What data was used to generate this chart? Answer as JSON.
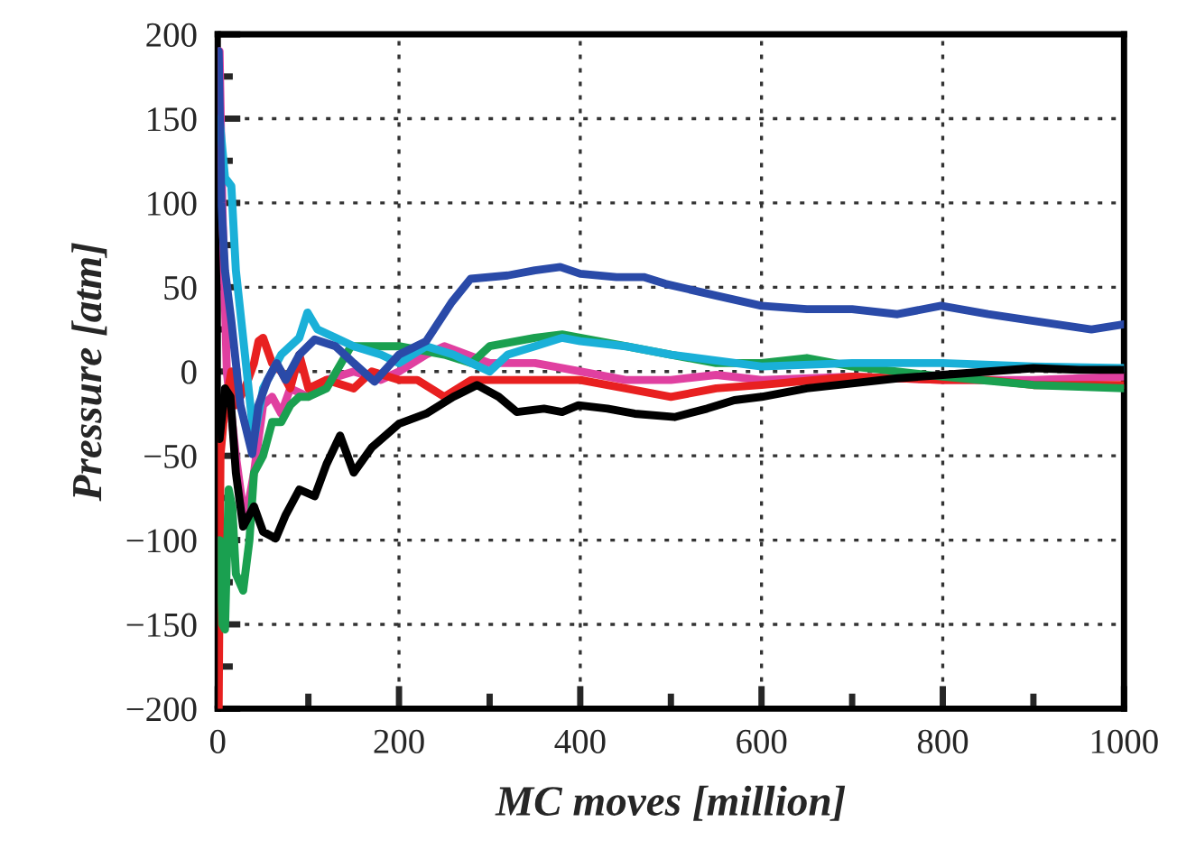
{
  "chart_data": {
    "type": "line",
    "xlabel": "MC moves [million]",
    "ylabel": "Pressure [atm]",
    "xlim": [
      0,
      1000
    ],
    "ylim": [
      -200,
      200
    ],
    "xticks": [
      0,
      {
        "value": 100,
        "label": null
      },
      200,
      {
        "value": 300,
        "label": null
      },
      400,
      {
        "value": 500,
        "label": null
      },
      600,
      {
        "value": 700,
        "label": null
      },
      800,
      {
        "value": 900,
        "label": null
      },
      1000
    ],
    "yticks": [
      {
        "value": -200,
        "label": "−200"
      },
      {
        "value": -175,
        "label": null
      },
      {
        "value": -150,
        "label": "−150"
      },
      {
        "value": -125,
        "label": null
      },
      {
        "value": -100,
        "label": "−100"
      },
      {
        "value": -75,
        "label": null
      },
      {
        "value": -50,
        "label": "−50"
      },
      {
        "value": -25,
        "label": null
      },
      0,
      {
        "value": 25,
        "label": null
      },
      50,
      {
        "value": 75,
        "label": null
      },
      100,
      {
        "value": 125,
        "label": null
      },
      150,
      {
        "value": 175,
        "label": null
      },
      200
    ],
    "grid": true,
    "marker": "none",
    "line_style": "solid",
    "series": [
      {
        "color": "#e040a0",
        "x": [
          2,
          5,
          10,
          20,
          30,
          40,
          50,
          60,
          70,
          80,
          100,
          120,
          150,
          180,
          200,
          230,
          250,
          300,
          350,
          400,
          450,
          500,
          550,
          600,
          700,
          800,
          900,
          1000
        ],
        "values": [
          190,
          100,
          0,
          -50,
          -90,
          -60,
          -20,
          -15,
          -25,
          -10,
          -15,
          -5,
          0,
          -5,
          0,
          10,
          15,
          5,
          5,
          0,
          -5,
          -5,
          -2,
          -5,
          -3,
          -5,
          -5,
          -3
        ]
      },
      {
        "color": "#e82020",
        "x": [
          1,
          3,
          8,
          15,
          20,
          30,
          40,
          45,
          50,
          60,
          70,
          80,
          90,
          100,
          120,
          150,
          170,
          200,
          220,
          250,
          280,
          300,
          350,
          400,
          450,
          500,
          550,
          600,
          700,
          800,
          850,
          900,
          1000
        ],
        "values": [
          -200,
          -50,
          -20,
          0,
          -20,
          -10,
          5,
          18,
          20,
          5,
          0,
          -10,
          10,
          -10,
          -5,
          -10,
          0,
          -5,
          -5,
          -15,
          -5,
          -5,
          -5,
          -5,
          -10,
          -15,
          -10,
          -8,
          -3,
          -5,
          -5,
          -8,
          -8
        ]
      },
      {
        "color": "#1aa050",
        "x": [
          2,
          5,
          8,
          12,
          16,
          20,
          28,
          35,
          40,
          50,
          60,
          70,
          80,
          90,
          100,
          120,
          147,
          160,
          200,
          250,
          280,
          300,
          350,
          380,
          400,
          450,
          500,
          550,
          600,
          650,
          700,
          800,
          900,
          1000
        ],
        "values": [
          -100,
          -150,
          -153,
          -70,
          -80,
          -120,
          -130,
          -100,
          -60,
          -50,
          -30,
          -30,
          -20,
          -15,
          -15,
          -10,
          15,
          15,
          15,
          10,
          5,
          15,
          20,
          22,
          20,
          15,
          10,
          5,
          5,
          8,
          3,
          -3,
          -8,
          -10
        ]
      },
      {
        "color": "#1ab0d8",
        "x": [
          2,
          8,
          15,
          20,
          30,
          40,
          50,
          70,
          90,
          99,
          110,
          130,
          150,
          180,
          200,
          230,
          260,
          280,
          300,
          320,
          350,
          380,
          400,
          450,
          500,
          600,
          700,
          800,
          900,
          1000
        ],
        "values": [
          150,
          115,
          110,
          60,
          10,
          -40,
          -10,
          10,
          20,
          35,
          25,
          20,
          15,
          10,
          5,
          15,
          10,
          5,
          0,
          10,
          15,
          20,
          18,
          15,
          10,
          3,
          5,
          5,
          3,
          2
        ]
      },
      {
        "color": "#2a4aa8",
        "x": [
          1,
          4,
          8,
          15,
          25,
          38,
          45,
          55,
          65,
          75,
          90,
          107,
          130,
          150,
          173,
          200,
          230,
          258,
          279,
          320,
          350,
          378,
          400,
          440,
          470,
          494,
          550,
          600,
          650,
          700,
          750,
          798,
          850,
          900,
          964,
          1000
        ],
        "values": [
          190,
          100,
          60,
          30,
          -20,
          -49,
          -20,
          -5,
          5,
          -5,
          10,
          19,
          15,
          5,
          -6,
          10,
          18,
          41,
          55,
          57,
          60,
          62,
          58,
          56,
          56,
          52,
          45,
          39,
          37,
          37,
          34,
          39,
          34,
          30,
          25,
          28
        ]
      },
      {
        "color": "#000000",
        "x": [
          2,
          8,
          14,
          20,
          28,
          40,
          50,
          64,
          75,
          90,
          107,
          120,
          135,
          150,
          170,
          200,
          230,
          260,
          286,
          310,
          330,
          360,
          380,
          398,
          430,
          460,
          504,
          540,
          570,
          600,
          650,
          700,
          750,
          800,
          850,
          900,
          950,
          1000
        ],
        "values": [
          -40,
          -10,
          -15,
          -60,
          -92,
          -80,
          -95,
          -99,
          -85,
          -70,
          -74,
          -55,
          -38,
          -60,
          -45,
          -31,
          -25,
          -15,
          -8,
          -15,
          -24,
          -22,
          -24,
          -20,
          -22,
          -25,
          -27,
          -22,
          -17,
          -15,
          -10,
          -7,
          -4,
          -2,
          0,
          2,
          1,
          1
        ]
      }
    ]
  }
}
